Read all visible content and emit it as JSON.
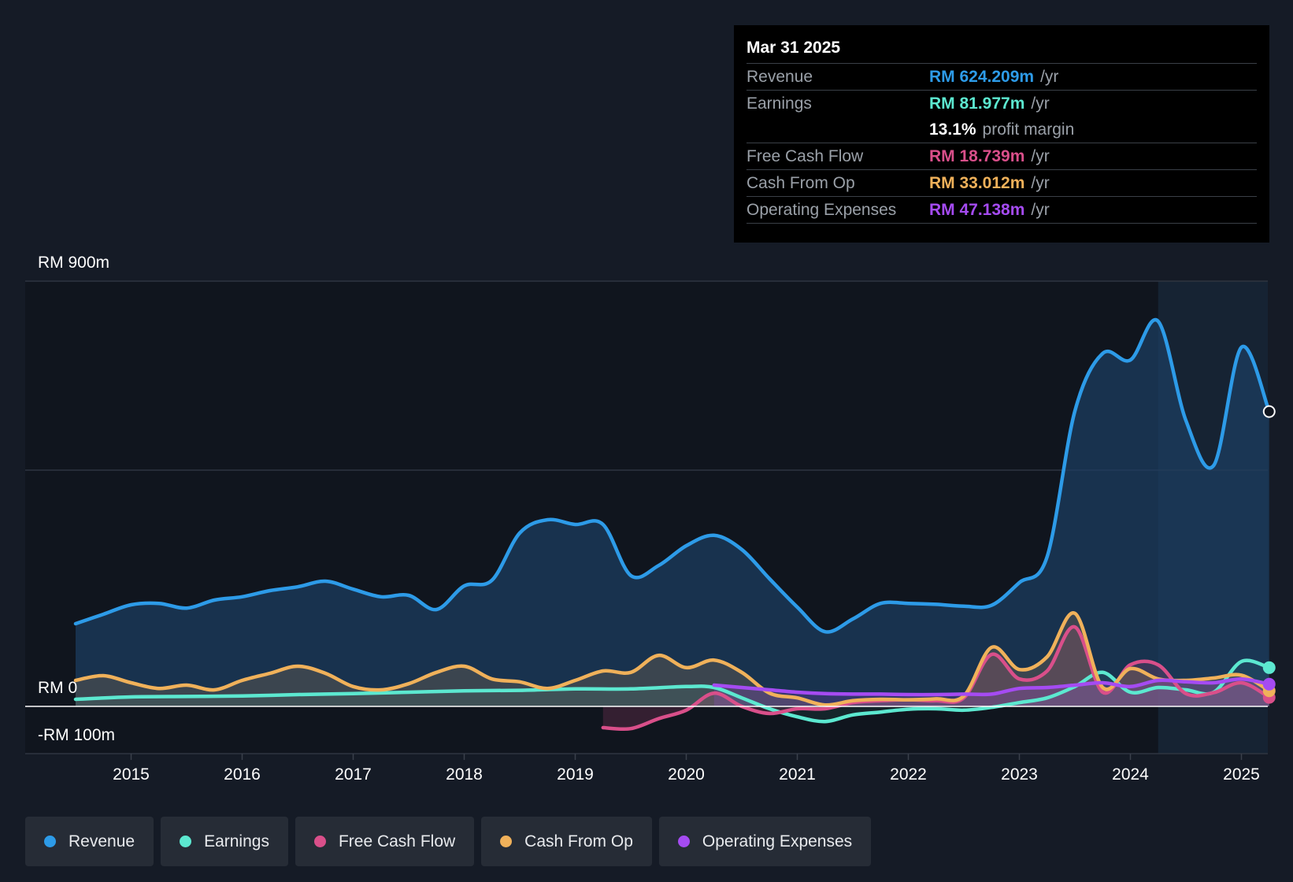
{
  "tooltip": {
    "date": "Mar 31 2025",
    "rows": [
      {
        "label": "Revenue",
        "value": "RM 624.209m",
        "unit": "/yr",
        "color": "#2d9be8"
      },
      {
        "label": "Earnings",
        "value": "RM 81.977m",
        "unit": "/yr",
        "color": "#5ce8d0"
      },
      {
        "label": "",
        "value": "13.1%",
        "unit": "profit margin",
        "color": "#ffffff"
      },
      {
        "label": "Free Cash Flow",
        "value": "RM 18.739m",
        "unit": "/yr",
        "color": "#d94f8a"
      },
      {
        "label": "Cash From Op",
        "value": "RM 33.012m",
        "unit": "/yr",
        "color": "#f0b15a"
      },
      {
        "label": "Operating Expenses",
        "value": "RM 47.138m",
        "unit": "/yr",
        "color": "#a54bf2"
      }
    ]
  },
  "legend": [
    {
      "label": "Revenue",
      "color": "#2d9be8"
    },
    {
      "label": "Earnings",
      "color": "#5ce8d0"
    },
    {
      "label": "Free Cash Flow",
      "color": "#d94f8a"
    },
    {
      "label": "Cash From Op",
      "color": "#f0b15a"
    },
    {
      "label": "Operating Expenses",
      "color": "#a54bf2"
    }
  ],
  "chart_data": {
    "type": "area",
    "title": "",
    "y_axis_labels": [
      "RM 900m",
      "RM 0",
      "-RM 100m"
    ],
    "ylim": [
      -100,
      900
    ],
    "xlim": [
      2014.5,
      2025.25
    ],
    "x_ticks": [
      2015,
      2016,
      2017,
      2018,
      2019,
      2020,
      2021,
      2022,
      2023,
      2024,
      2025
    ],
    "x_tick_labels": [
      "2015",
      "2016",
      "2017",
      "2018",
      "2019",
      "2020",
      "2021",
      "2022",
      "2023",
      "2024",
      "2025"
    ],
    "forecast_start": 2024.25,
    "series": [
      {
        "name": "Revenue",
        "color": "#2d9be8",
        "x": [
          2014.5,
          2014.75,
          2015.0,
          2015.25,
          2015.5,
          2015.75,
          2016.0,
          2016.25,
          2016.5,
          2016.75,
          2017.0,
          2017.25,
          2017.5,
          2017.75,
          2018.0,
          2018.25,
          2018.5,
          2018.75,
          2019.0,
          2019.25,
          2019.5,
          2019.75,
          2020.0,
          2020.25,
          2020.5,
          2020.75,
          2021.0,
          2021.25,
          2021.5,
          2021.75,
          2022.0,
          2022.25,
          2022.5,
          2022.75,
          2023.0,
          2023.25,
          2023.5,
          2023.75,
          2024.0,
          2024.25,
          2024.5,
          2024.75,
          2025.0,
          2025.25
        ],
        "values": [
          175,
          195,
          215,
          218,
          208,
          225,
          232,
          245,
          253,
          265,
          248,
          232,
          235,
          205,
          255,
          267,
          367,
          395,
          385,
          385,
          277,
          298,
          340,
          362,
          332,
          270,
          210,
          158,
          185,
          218,
          218,
          216,
          212,
          214,
          262,
          317,
          625,
          747,
          733,
          815,
          605,
          510,
          760,
          624
        ]
      },
      {
        "name": "Earnings",
        "color": "#5ce8d0",
        "x": [
          2014.5,
          2015.0,
          2015.5,
          2016.0,
          2016.5,
          2017.0,
          2017.5,
          2018.0,
          2018.5,
          2019.0,
          2019.5,
          2020.0,
          2020.25,
          2020.5,
          2020.75,
          2021.0,
          2021.25,
          2021.5,
          2021.75,
          2022.0,
          2022.25,
          2022.5,
          2022.75,
          2023.0,
          2023.25,
          2023.5,
          2023.75,
          2024.0,
          2024.25,
          2024.5,
          2024.75,
          2025.0,
          2025.25
        ],
        "values": [
          15,
          20,
          21,
          22,
          25,
          27,
          30,
          33,
          34,
          37,
          37,
          42,
          40,
          18,
          -5,
          -22,
          -32,
          -18,
          -12,
          -6,
          -5,
          -8,
          -2,
          8,
          18,
          42,
          72,
          30,
          40,
          35,
          30,
          95,
          82
        ]
      },
      {
        "name": "Free Cash Flow",
        "color": "#d94f8a",
        "x": [
          2019.25,
          2019.5,
          2019.75,
          2020.0,
          2020.25,
          2020.5,
          2020.75,
          2021.0,
          2021.25,
          2021.5,
          2021.75,
          2022.0,
          2022.25,
          2022.5,
          2022.75,
          2023.0,
          2023.25,
          2023.5,
          2023.75,
          2024.0,
          2024.25,
          2024.5,
          2024.75,
          2025.0,
          2025.25
        ],
        "values": [
          -45,
          -47,
          -26,
          -8,
          28,
          0,
          -15,
          -5,
          -5,
          8,
          12,
          14,
          12,
          18,
          110,
          58,
          75,
          168,
          30,
          88,
          88,
          27,
          29,
          50,
          19
        ]
      },
      {
        "name": "Cash From Op",
        "color": "#f0b15a",
        "x": [
          2014.5,
          2014.75,
          2015.0,
          2015.25,
          2015.5,
          2015.75,
          2016.0,
          2016.25,
          2016.5,
          2016.75,
          2017.0,
          2017.25,
          2017.5,
          2017.75,
          2018.0,
          2018.25,
          2018.5,
          2018.75,
          2019.0,
          2019.25,
          2019.5,
          2019.75,
          2020.0,
          2020.25,
          2020.5,
          2020.75,
          2021.0,
          2021.25,
          2021.5,
          2021.75,
          2022.0,
          2022.25,
          2022.5,
          2022.75,
          2023.0,
          2023.25,
          2023.5,
          2023.75,
          2024.0,
          2024.25,
          2024.5,
          2024.75,
          2025.0,
          2025.25
        ],
        "values": [
          55,
          65,
          50,
          38,
          45,
          35,
          55,
          70,
          85,
          70,
          42,
          35,
          48,
          72,
          85,
          58,
          52,
          38,
          55,
          75,
          72,
          108,
          82,
          98,
          72,
          28,
          18,
          3,
          12,
          15,
          14,
          16,
          22,
          125,
          78,
          105,
          197,
          40,
          80,
          58,
          55,
          60,
          66,
          33
        ]
      },
      {
        "name": "Operating Expenses",
        "color": "#a54bf2",
        "x": [
          2020.25,
          2020.5,
          2020.75,
          2021.0,
          2021.25,
          2021.5,
          2021.75,
          2022.0,
          2022.25,
          2022.5,
          2022.75,
          2023.0,
          2023.25,
          2023.5,
          2023.75,
          2024.0,
          2024.25,
          2024.5,
          2024.75,
          2025.0,
          2025.25
        ],
        "values": [
          45,
          40,
          35,
          30,
          27,
          26,
          26,
          25,
          25,
          26,
          26,
          38,
          40,
          45,
          50,
          42,
          55,
          52,
          50,
          58,
          47
        ]
      }
    ]
  }
}
